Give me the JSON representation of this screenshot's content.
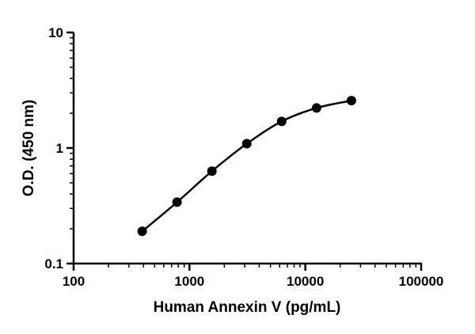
{
  "chart_data": {
    "type": "scatter",
    "title": "",
    "xlabel": "Human Annexin V (pg/mL)",
    "ylabel": "O.D. (450 nm)",
    "xscale": "log",
    "yscale": "log",
    "xlim": [
      100,
      100000
    ],
    "ylim": [
      0.1,
      10
    ],
    "xticks": [
      100,
      1000,
      10000,
      100000
    ],
    "xtick_labels": [
      "100",
      "1000",
      "10000",
      "100000"
    ],
    "yticks": [
      0.1,
      1,
      10
    ],
    "ytick_labels": [
      "0.1",
      "1",
      "10"
    ],
    "grid": false,
    "fit_curve": true,
    "series": [
      {
        "x": [
          390.6,
          781.3,
          1562.5,
          3125,
          6250,
          12500,
          25000
        ],
        "y": [
          0.19,
          0.34,
          0.63,
          1.09,
          1.7,
          2.22,
          2.57
        ]
      }
    ],
    "colors": {
      "marker": "#000000",
      "line": "#000000",
      "axis": "#000000"
    }
  }
}
